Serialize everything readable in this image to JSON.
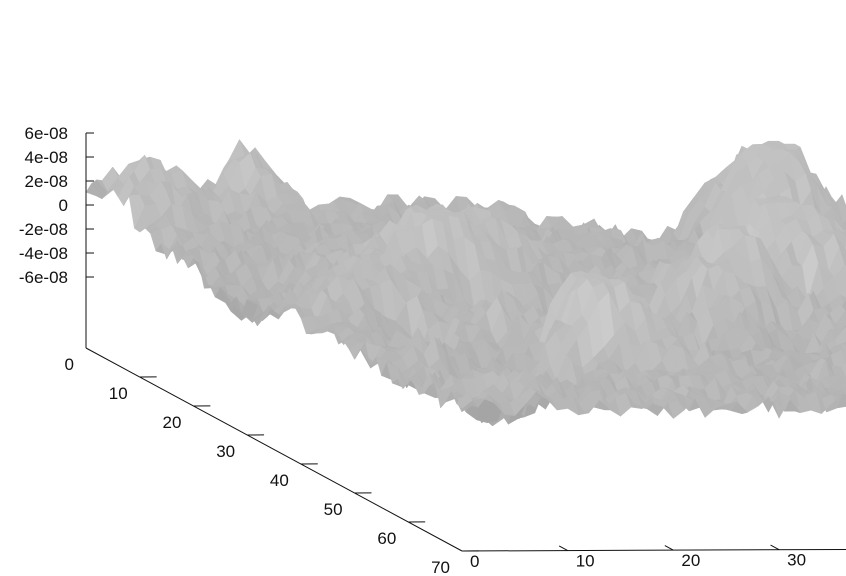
{
  "chart_data": {
    "type": "surface3d",
    "title": "",
    "x_axis": {
      "label": "",
      "range": [
        0,
        70
      ],
      "ticks": [
        0,
        10,
        20,
        30,
        40,
        50,
        60,
        70
      ]
    },
    "y_axis": {
      "label": "",
      "range": [
        0,
        70
      ],
      "ticks": [
        0,
        10,
        20,
        30,
        40,
        50,
        60,
        70
      ]
    },
    "z_axis": {
      "label": "",
      "range": [
        -6e-08,
        6e-08
      ],
      "tick_labels": [
        "6e-08",
        "4e-08",
        "2e-08",
        "0",
        "-2e-08",
        "-4e-08",
        "-6e-08"
      ],
      "tick_values": [
        6e-08,
        4e-08,
        2e-08,
        0,
        -2e-08,
        -4e-08,
        -6e-08
      ]
    },
    "grid_size": 70,
    "surface_color": "#b4b4b4",
    "axis_color": "#111111",
    "legend": "none",
    "grid": false
  }
}
